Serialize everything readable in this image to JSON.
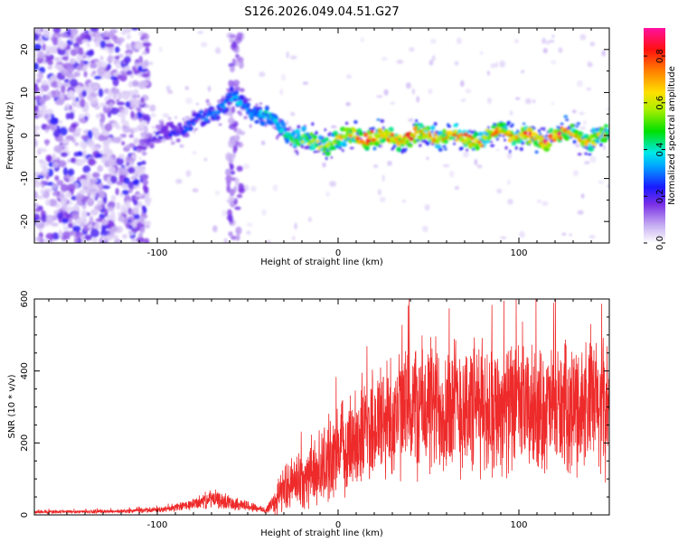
{
  "title": "S126.2026.049.04.51.G27",
  "colors": {
    "snr_line": "#ee2a2a",
    "axis": "#000000"
  },
  "chart_data": [
    {
      "type": "heatmap",
      "name": "spectrogram",
      "xlabel": "Height of straight line (km)",
      "ylabel": "Frequency (Hz)",
      "xlim": [
        -168,
        150
      ],
      "ylim": [
        -25,
        25
      ],
      "xticks": [
        -100,
        0,
        100
      ],
      "xtick_labels": [
        "-100",
        "0",
        "100"
      ],
      "yticks": [
        -20,
        -10,
        0,
        10,
        20
      ],
      "ytick_labels": [
        "-20",
        "-10",
        "0",
        "10",
        "20"
      ],
      "colorbar": {
        "label": "Normalized spectral amplitude",
        "range": [
          0,
          0.92
        ],
        "ticks": [
          0,
          0.2,
          0.4,
          0.6,
          0.8
        ],
        "tick_labels": [
          "0.0",
          "0.2",
          "0.4",
          "0.6",
          "0.8"
        ]
      },
      "ridge": {
        "description_points_x": [
          -110,
          -90,
          -70,
          -60,
          -50,
          -40,
          -30,
          -20,
          -10,
          0,
          10,
          20,
          30,
          40,
          50,
          60,
          70,
          80,
          90,
          100,
          110,
          120,
          130,
          140,
          150
        ],
        "freq_hz": [
          -2,
          1,
          5,
          9,
          6,
          5,
          1,
          -1,
          -2,
          -1,
          0,
          0,
          -1,
          0,
          0,
          0,
          -1,
          -1,
          1,
          0,
          -1,
          0,
          0,
          -1,
          0
        ],
        "amplitude": [
          0.15,
          0.25,
          0.3,
          0.35,
          0.35,
          0.4,
          0.45,
          0.55,
          0.6,
          0.65,
          0.7,
          0.8,
          0.75,
          0.8,
          0.75,
          0.7,
          0.75,
          0.7,
          0.7,
          0.75,
          0.8,
          0.85,
          0.75,
          0.7,
          0.6
        ]
      }
    },
    {
      "type": "line",
      "name": "snr",
      "xlabel": "Height of straight line (km)",
      "ylabel": "SNR (10 * v/v)",
      "xlim": [
        -168,
        150
      ],
      "ylim": [
        0,
        600
      ],
      "xticks": [
        -100,
        0,
        100
      ],
      "xtick_labels": [
        "-100",
        "0",
        "100"
      ],
      "yticks": [
        0,
        200,
        400,
        600
      ],
      "ytick_labels": [
        "0",
        "200",
        "400",
        "600"
      ],
      "envelope_x": [
        -168,
        -120,
        -95,
        -80,
        -70,
        -60,
        -50,
        -40,
        -35,
        -30,
        -20,
        -10,
        0,
        10,
        20,
        30,
        40,
        50,
        60,
        70,
        80,
        90,
        100,
        110,
        120,
        130,
        140,
        150
      ],
      "envelope_mean": [
        8,
        10,
        15,
        30,
        45,
        35,
        25,
        12,
        40,
        75,
        100,
        130,
        175,
        215,
        250,
        275,
        295,
        300,
        305,
        300,
        300,
        300,
        295,
        290,
        295,
        300,
        305,
        300
      ],
      "envelope_spread": [
        5,
        5,
        8,
        15,
        25,
        20,
        15,
        8,
        40,
        60,
        80,
        100,
        120,
        140,
        160,
        170,
        180,
        190,
        190,
        185,
        180,
        175,
        170,
        165,
        165,
        170,
        175,
        180
      ],
      "peak_max": 600
    }
  ]
}
